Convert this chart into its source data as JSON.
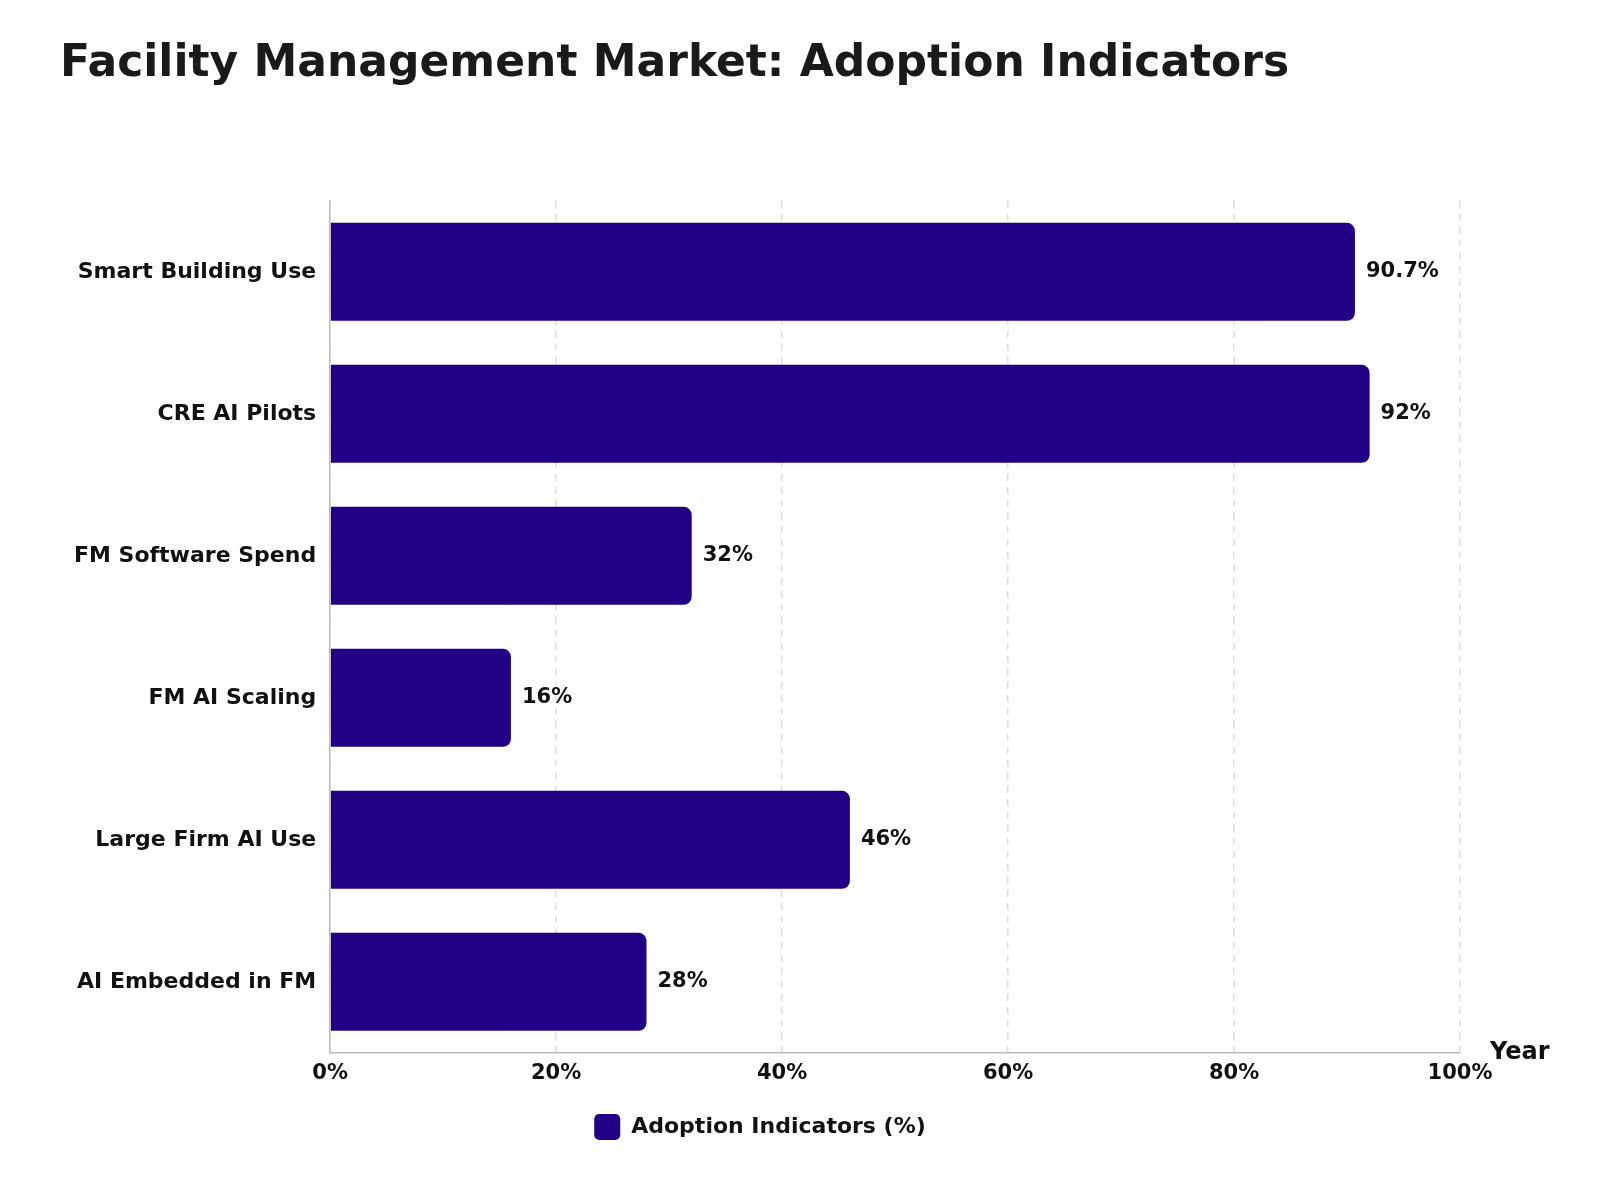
{
  "chart_data": {
    "type": "bar",
    "orientation": "horizontal",
    "title": "Facility Management Market: Adoption Indicators",
    "xlabel": "Year",
    "categories": [
      "Smart Building Use",
      "CRE AI Pilots",
      "FM Software Spend",
      "FM AI Scaling",
      "Large Firm AI Use",
      "AI Embedded in FM"
    ],
    "series": [
      {
        "name": "Adoption Indicators (%)",
        "color": "#220085",
        "values": [
          90.7,
          92,
          32,
          16,
          46,
          28
        ],
        "value_labels": [
          "90.7%",
          "92%",
          "32%",
          "16%",
          "46%",
          "28%"
        ]
      }
    ],
    "xlim": [
      0,
      100
    ],
    "xticks": [
      {
        "value": 0,
        "label": "0%"
      },
      {
        "value": 20,
        "label": "20%"
      },
      {
        "value": 40,
        "label": "40%"
      },
      {
        "value": 60,
        "label": "60%"
      },
      {
        "value": 80,
        "label": "80%"
      },
      {
        "value": 100,
        "label": "100%"
      }
    ],
    "grid": "x",
    "legend": "bottom"
  }
}
